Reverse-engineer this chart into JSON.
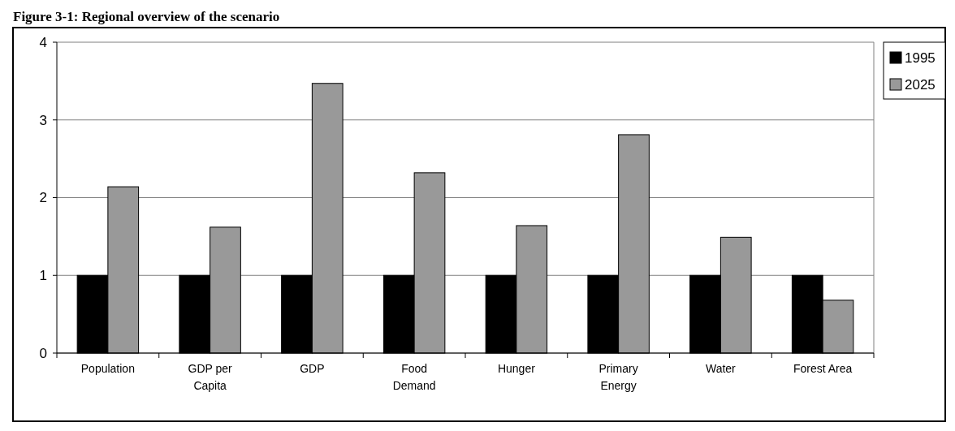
{
  "chart_data": {
    "type": "bar",
    "title": "Figure 3-1: Regional overview of the scenario",
    "categories": [
      "Population",
      "GDP per\nCapita",
      "GDP",
      "Food\nDemand",
      "Hunger",
      "Primary\nEnergy",
      "Water",
      "Forest Area"
    ],
    "series": [
      {
        "name": "1995",
        "color": "#000000",
        "values": [
          1,
          1,
          1,
          1,
          1,
          1,
          1,
          1
        ]
      },
      {
        "name": "2025",
        "color": "#999999",
        "values": [
          2.14,
          1.62,
          3.47,
          2.32,
          1.64,
          2.81,
          1.49,
          0.68
        ]
      }
    ],
    "ylim": [
      0,
      4
    ],
    "yticks": [
      0,
      1,
      2,
      3,
      4
    ],
    "grid": "y",
    "legend": "right"
  }
}
